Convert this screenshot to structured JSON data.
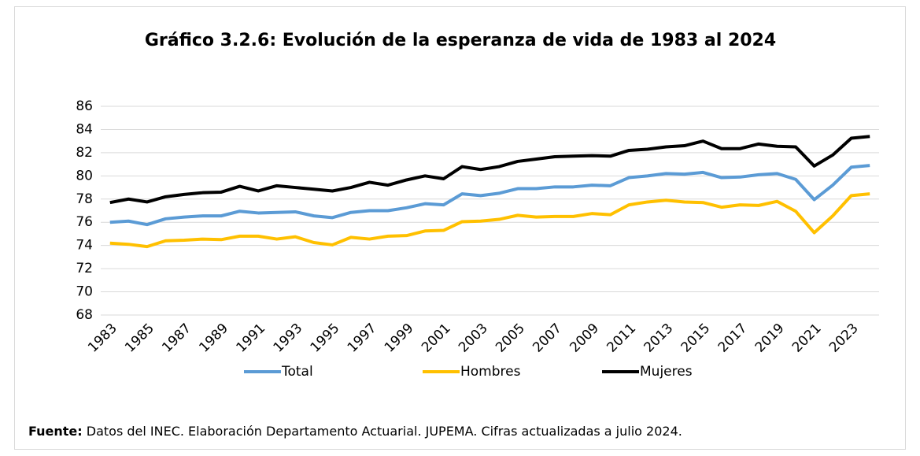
{
  "chart_data": {
    "type": "line",
    "title": "Gráfico 3.2.6: Evolución de la esperanza de vida de 1983 al 2024",
    "categories": [
      "1983",
      null,
      "1985",
      null,
      "1987",
      null,
      "1989",
      null,
      "1991",
      null,
      "1993",
      null,
      "1995",
      null,
      "1997",
      null,
      "1999",
      null,
      "2001",
      null,
      "2003",
      null,
      "2005",
      null,
      "2007",
      null,
      "2009",
      null,
      "2011",
      null,
      "2013",
      null,
      "2015",
      null,
      "2017",
      null,
      "2019",
      null,
      "2021",
      null,
      "2023",
      null
    ],
    "series": [
      {
        "name": "Total",
        "color": "#5b9bd5",
        "values": [
          76.0,
          76.1,
          75.8,
          76.3,
          76.45,
          76.55,
          76.55,
          76.95,
          76.8,
          76.85,
          76.9,
          76.55,
          76.4,
          76.85,
          77.0,
          77.0,
          77.25,
          77.6,
          77.5,
          78.45,
          78.3,
          78.5,
          78.9,
          78.9,
          79.05,
          79.05,
          79.2,
          79.15,
          79.85,
          80.0,
          80.2,
          80.15,
          80.3,
          79.85,
          79.9,
          80.1,
          80.2,
          79.7,
          77.95,
          79.2,
          80.75,
          80.9
        ]
      },
      {
        "name": "Hombres",
        "color": "#ffc000",
        "values": [
          74.2,
          74.1,
          73.9,
          74.4,
          74.45,
          74.55,
          74.5,
          74.8,
          74.8,
          74.55,
          74.75,
          74.25,
          74.05,
          74.7,
          74.55,
          74.8,
          74.85,
          75.25,
          75.3,
          76.05,
          76.1,
          76.25,
          76.6,
          76.45,
          76.5,
          76.5,
          76.75,
          76.65,
          77.5,
          77.75,
          77.9,
          77.75,
          77.7,
          77.3,
          77.5,
          77.45,
          77.8,
          76.95,
          75.1,
          76.55,
          78.3,
          78.45
        ]
      },
      {
        "name": "Mujeres",
        "color": "#000000",
        "values": [
          77.7,
          78.0,
          77.75,
          78.2,
          78.4,
          78.55,
          78.6,
          79.1,
          78.7,
          79.15,
          79.0,
          78.85,
          78.7,
          79.0,
          79.45,
          79.2,
          79.65,
          80.0,
          79.75,
          80.8,
          80.55,
          80.8,
          81.25,
          81.45,
          81.65,
          81.7,
          81.75,
          81.7,
          82.2,
          82.3,
          82.5,
          82.6,
          83.0,
          82.35,
          82.35,
          82.75,
          82.55,
          82.5,
          80.85,
          81.8,
          83.25,
          83.4
        ]
      }
    ],
    "ylim": [
      68,
      86
    ],
    "yticks": [
      68,
      70,
      72,
      74,
      76,
      78,
      80,
      82,
      84,
      86
    ],
    "grid": true,
    "legend": "bottom",
    "source": {
      "label": "Fuente:",
      "text": " Datos del INEC. Elaboración Departamento Actuarial. JUPEMA. Cifras actualizadas a julio 2024."
    }
  }
}
